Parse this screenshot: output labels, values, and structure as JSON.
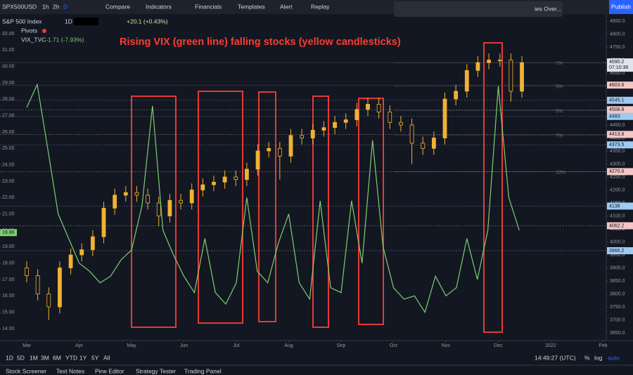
{
  "toolbar": {
    "symbol": "SPX500USD",
    "intervals": [
      "1h",
      "2h",
      "D"
    ],
    "buttons": [
      "Compare",
      "Indicators",
      "Financials",
      "Templates",
      "Alert",
      "Replay"
    ],
    "ideas": "ies Over...",
    "publish": "Publish"
  },
  "legend": {
    "name": "S&P 500 Index",
    "interval": "1D",
    "change": "+20.1 (+0.43%)",
    "pivots": "Pivots",
    "vix": "VIX_TVC",
    "vix_change": "-1.71 (-7.93%)"
  },
  "chart_data": {
    "type": "candlestick",
    "annotation": "Rising VIX (green line) falling stocks (yellow candlesticks)",
    "color": "#f0b232",
    "x": [
      0,
      0.21,
      0.42,
      0.63,
      0.84,
      1.05,
      1.26,
      1.47,
      1.68,
      1.89,
      2.1,
      2.31,
      2.52,
      2.73,
      2.94,
      3.15,
      3.36,
      3.57,
      3.78,
      3.99,
      4.2,
      4.41,
      4.62,
      4.83,
      5.04,
      5.25,
      5.46,
      5.67,
      5.88,
      6.09,
      6.3,
      6.51,
      6.72,
      6.93,
      7.14,
      7.35,
      7.56,
      7.77,
      7.98,
      8.19,
      8.4,
      8.61,
      8.82,
      9.03,
      9.24,
      9.45
    ],
    "open": [
      3900,
      3870,
      3800,
      3750,
      3900,
      3950,
      3970,
      4020,
      4130,
      4180,
      4190,
      4180,
      4150,
      4100,
      4160,
      4150,
      4200,
      4220,
      4230,
      4250,
      4240,
      4280,
      4350,
      4360,
      4330,
      4410,
      4400,
      4430,
      4440,
      4460,
      4470,
      4510,
      4530,
      4500,
      4460,
      4450,
      4380,
      4360,
      4400,
      4550,
      4580,
      4660,
      4690,
      4700,
      4700,
      4580
    ],
    "high": [
      3925,
      3895,
      3825,
      3925,
      3975,
      3995,
      4045,
      4155,
      4205,
      4215,
      4215,
      4205,
      4175,
      4185,
      4185,
      4225,
      4245,
      4255,
      4275,
      4275,
      4305,
      4375,
      4385,
      4385,
      4435,
      4435,
      4455,
      4465,
      4485,
      4495,
      4535,
      4555,
      4555,
      4525,
      4485,
      4475,
      4405,
      4425,
      4575,
      4605,
      4685,
      4715,
      4725,
      4725,
      4725,
      4715
    ],
    "low": [
      3845,
      3775,
      3700,
      3725,
      3875,
      3925,
      3945,
      3995,
      4105,
      4155,
      4155,
      4125,
      4060,
      4075,
      4125,
      4125,
      4175,
      4195,
      4205,
      4215,
      4215,
      4255,
      4325,
      4240,
      4305,
      4375,
      4375,
      4405,
      4415,
      4435,
      4445,
      4485,
      4475,
      4435,
      4425,
      4300,
      4335,
      4335,
      4375,
      4525,
      4555,
      4635,
      4665,
      4675,
      4540,
      4555
    ],
    "close": [
      3870,
      3800,
      3750,
      3900,
      3950,
      3970,
      4020,
      4130,
      4180,
      4190,
      4180,
      4150,
      4100,
      4160,
      4150,
      4200,
      4220,
      4230,
      4250,
      4240,
      4280,
      4350,
      4360,
      4330,
      4410,
      4400,
      4430,
      4440,
      4460,
      4470,
      4510,
      4530,
      4500,
      4460,
      4450,
      4380,
      4360,
      4400,
      4550,
      4580,
      4660,
      4690,
      4700,
      4700,
      4580,
      4690
    ],
    "series": [
      {
        "name": "VIX_TVC",
        "color": "#7ccf6f",
        "axis": "y2",
        "x": [
          0,
          0.2,
          0.4,
          0.6,
          0.8,
          1,
          1.2,
          1.4,
          1.6,
          1.8,
          2,
          2.2,
          2.4,
          2.6,
          2.8,
          3,
          3.2,
          3.4,
          3.6,
          3.8,
          4,
          4.2,
          4.4,
          4.6,
          4.8,
          5,
          5.2,
          5.4,
          5.6,
          5.8,
          6,
          6.2,
          6.4,
          6.6,
          6.8,
          7,
          7.2,
          7.4,
          7.6,
          7.8,
          8,
          8.2,
          8.4,
          8.6,
          8.8,
          9,
          9.2,
          9.4
        ],
        "values": [
          27.5,
          28.9,
          25,
          21,
          19.5,
          18,
          17.5,
          16.8,
          17.2,
          18.2,
          18.8,
          21.5,
          27.6,
          20,
          18.5,
          17.2,
          16.2,
          19.5,
          16.2,
          15.5,
          16.8,
          22,
          17.5,
          16.8,
          19.2,
          21,
          16.8,
          15.8,
          21.8,
          16.5,
          16.2,
          21.8,
          18,
          25.5,
          19,
          16.5,
          15.8,
          16,
          15,
          17.2,
          16,
          16.5,
          19.5,
          17,
          20,
          28.8,
          22,
          20
        ]
      }
    ],
    "xlim": [
      -0.5,
      11.5
    ],
    "xticks": [
      {
        "value": 0,
        "label": "Mar"
      },
      {
        "value": 1,
        "label": "Apr"
      },
      {
        "value": 2,
        "label": "May"
      },
      {
        "value": 3,
        "label": "Jun"
      },
      {
        "value": 4,
        "label": "Jul"
      },
      {
        "value": 5,
        "label": "Aug"
      },
      {
        "value": 6,
        "label": "Sep"
      },
      {
        "value": 7,
        "label": "Oct"
      },
      {
        "value": 8,
        "label": "Nov"
      },
      {
        "value": 9,
        "label": "Dec"
      },
      {
        "value": 10,
        "label": "2022"
      },
      {
        "value": 11,
        "label": "Feb"
      }
    ],
    "ylim": [
      3650,
      4850
    ],
    "yticks": [
      {
        "value": 4850,
        "label": "4850.0"
      },
      {
        "value": 4800,
        "label": "4800.0"
      },
      {
        "value": 4750,
        "label": "4750.0"
      },
      {
        "value": 4700,
        "label": "4700.0"
      },
      {
        "value": 4650,
        "label": "4650.0"
      },
      {
        "value": 4600,
        "label": "4600.0"
      },
      {
        "value": 4550,
        "label": "4550.0"
      },
      {
        "value": 4500,
        "label": "4500.0"
      },
      {
        "value": 4450,
        "label": "4450.0"
      },
      {
        "value": 4400,
        "label": "4400.0"
      },
      {
        "value": 4350,
        "label": "4350.0"
      },
      {
        "value": 4300,
        "label": "4300.0"
      },
      {
        "value": 4250,
        "label": "4250.0"
      },
      {
        "value": 4200,
        "label": "4200.0"
      },
      {
        "value": 4150,
        "label": "4150.0"
      },
      {
        "value": 4100,
        "label": "4100.0"
      },
      {
        "value": 4050,
        "label": "4050.0"
      },
      {
        "value": 4000,
        "label": "4000.0"
      },
      {
        "value": 3950,
        "label": "3950.0"
      },
      {
        "value": 3900,
        "label": "3900.0"
      },
      {
        "value": 3850,
        "label": "3850.0"
      },
      {
        "value": 3800,
        "label": "3800.0"
      },
      {
        "value": 3750,
        "label": "3750.0"
      },
      {
        "value": 3700,
        "label": "3700.0"
      },
      {
        "value": 3650,
        "label": "3650.0"
      }
    ],
    "y2lim": [
      14,
      32
    ],
    "y2ticks": [
      {
        "value": 32,
        "label": "32.00"
      },
      {
        "value": 31,
        "label": "31.00"
      },
      {
        "value": 30,
        "label": "30.00"
      },
      {
        "value": 29,
        "label": "29.00"
      },
      {
        "value": 28,
        "label": "28.00"
      },
      {
        "value": 27,
        "label": "27.00"
      },
      {
        "value": 26,
        "label": "26.00"
      },
      {
        "value": 25,
        "label": "25.00"
      },
      {
        "value": 24,
        "label": "24.00"
      },
      {
        "value": 23,
        "label": "23.00"
      },
      {
        "value": 22,
        "label": "22.00"
      },
      {
        "value": 21,
        "label": "21.00"
      },
      {
        "value": 20,
        "label": "20.00"
      },
      {
        "value": 19,
        "label": "19.00"
      },
      {
        "value": 18,
        "label": "18.00"
      },
      {
        "value": 17,
        "label": "17.00"
      },
      {
        "value": 16,
        "label": "16.00"
      },
      {
        "value": 15,
        "label": "15.00"
      },
      {
        "value": 14,
        "label": "14.00"
      }
    ],
    "vix_last": 19.86,
    "last_price": 4690.2,
    "countdown": "07:10:38",
    "price_markers": [
      4603.6,
      4545.1,
      4508.8,
      4483.0,
      4413.8,
      4373.5,
      4270.6,
      4138.0,
      4062.2,
      3966.2
    ],
    "marker_colors": [
      "#f4c7c7",
      "#9ecbf2",
      "#f4c7c7",
      "#9ecbf2",
      "#f4c7c7",
      "#9ecbf2",
      "#f4c7c7",
      "#9ecbf2",
      "#f4c7c7",
      "#9ecbf2"
    ],
    "pivot_levels": [
      {
        "value": 4690,
        "label": "1%"
      },
      {
        "value": 4600,
        "label": "3%"
      },
      {
        "value": 4505,
        "label": "5%"
      },
      {
        "value": 4410,
        "label": "7%"
      },
      {
        "value": 4270,
        "label": "10%"
      }
    ]
  },
  "bottom": {
    "ranges": [
      "1D",
      "5D",
      "1M",
      "3M",
      "6M",
      "YTD",
      "1Y",
      "5Y",
      "All"
    ],
    "clock": "14:49:27 (UTC)",
    "percent": "%",
    "log": "log",
    "auto": "auto"
  },
  "tabs": [
    "Stock Screener",
    "Text Notes",
    "Pine Editor",
    "Strategy Tester",
    "Trading Panel"
  ]
}
